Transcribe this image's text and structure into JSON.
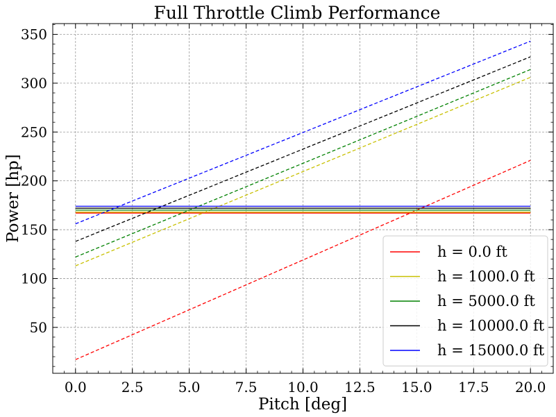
{
  "chart_data": {
    "type": "line",
    "title": "Full Throttle Climb Performance",
    "xlabel": "Pitch [deg]",
    "ylabel": "Power [hp]",
    "xlim": [
      -1.0,
      21.0
    ],
    "ylim": [
      3,
      361
    ],
    "xticks": [
      0.0,
      2.5,
      5.0,
      7.5,
      10.0,
      12.5,
      15.0,
      17.5,
      20.0
    ],
    "xtick_labels": [
      "0.0",
      "2.5",
      "5.0",
      "7.5",
      "10.0",
      "12.5",
      "15.0",
      "17.5",
      "20.0"
    ],
    "yticks": [
      50,
      100,
      150,
      200,
      250,
      300,
      350
    ],
    "ytick_labels": [
      "50",
      "100",
      "150",
      "200",
      "250",
      "300",
      "350"
    ],
    "grid": true,
    "legend_position": "bottom-right",
    "series": [
      {
        "name": "h = 0.0 ft",
        "color": "#ff0000",
        "available_power": 167,
        "required_power": {
          "x": [
            0,
            20
          ],
          "y": [
            17,
            221
          ]
        }
      },
      {
        "name": "h = 1000.0 ft",
        "color": "#c8c000",
        "available_power": 168,
        "required_power": {
          "x": [
            0,
            20
          ],
          "y": [
            113,
            306
          ]
        }
      },
      {
        "name": "h = 5000.0 ft",
        "color": "#008000",
        "available_power": 170,
        "required_power": {
          "x": [
            0,
            20
          ],
          "y": [
            122,
            314
          ]
        }
      },
      {
        "name": "h = 10000.0 ft",
        "color": "#000000",
        "available_power": 172,
        "required_power": {
          "x": [
            0,
            20
          ],
          "y": [
            138,
            327
          ]
        }
      },
      {
        "name": "h = 15000.0 ft",
        "color": "#0000ff",
        "available_power": 174,
        "required_power": {
          "x": [
            0,
            20
          ],
          "y": [
            156,
            343
          ]
        }
      }
    ]
  }
}
